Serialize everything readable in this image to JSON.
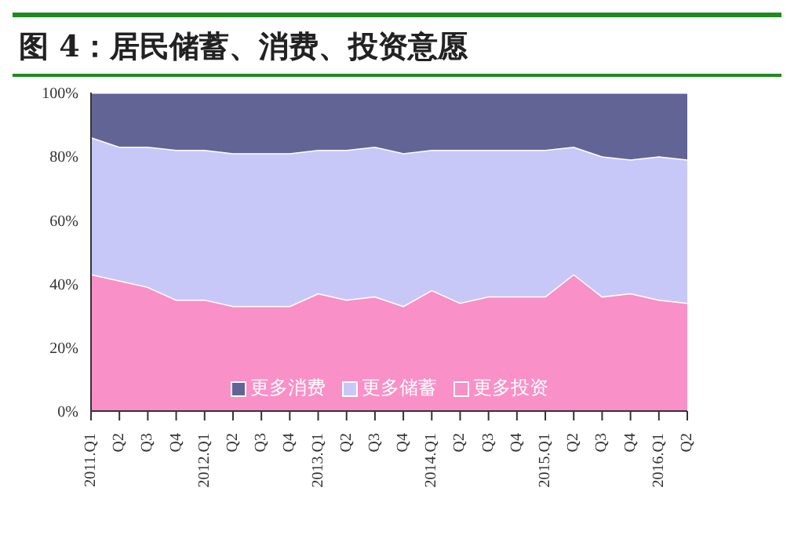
{
  "chart_data": {
    "type": "area",
    "stacked": true,
    "title": "图 4：居民储蓄、消费、投资意愿",
    "categories": [
      "2011.Q1",
      "Q2",
      "Q3",
      "Q4",
      "2012.Q1",
      "Q2",
      "Q3",
      "Q4",
      "2013.Q1",
      "Q2",
      "Q3",
      "Q4",
      "2014.Q1",
      "Q2",
      "Q3",
      "Q4",
      "2015.Q1",
      "Q2",
      "Q3",
      "Q4",
      "2016.Q1",
      "Q2"
    ],
    "series": [
      {
        "name": "更多投资",
        "color": "#f990c8",
        "values": [
          43,
          41,
          39,
          35,
          35,
          33,
          33,
          33,
          37,
          35,
          36,
          33,
          38,
          34,
          36,
          36,
          36,
          43,
          36,
          37,
          35,
          34
        ]
      },
      {
        "name": "更多储蓄",
        "color": "#c8c8f8",
        "values": [
          43,
          42,
          44,
          47,
          47,
          48,
          48,
          48,
          45,
          47,
          47,
          48,
          44,
          48,
          46,
          46,
          46,
          40,
          44,
          42,
          45,
          45
        ]
      },
      {
        "name": "更多消费",
        "color": "#636496",
        "values": [
          14,
          17,
          17,
          18,
          18,
          19,
          19,
          19,
          18,
          18,
          17,
          19,
          18,
          18,
          18,
          18,
          18,
          17,
          20,
          21,
          20,
          21
        ]
      }
    ],
    "ylim": [
      0,
      100
    ],
    "yticks": [
      {
        "value": 0,
        "label": "0%"
      },
      {
        "value": 20,
        "label": "20%"
      },
      {
        "value": 40,
        "label": "40%"
      },
      {
        "value": 60,
        "label": "60%"
      },
      {
        "value": 80,
        "label": "80%"
      },
      {
        "value": 100,
        "label": "100%"
      }
    ],
    "grid": false,
    "legend": "bottom"
  }
}
